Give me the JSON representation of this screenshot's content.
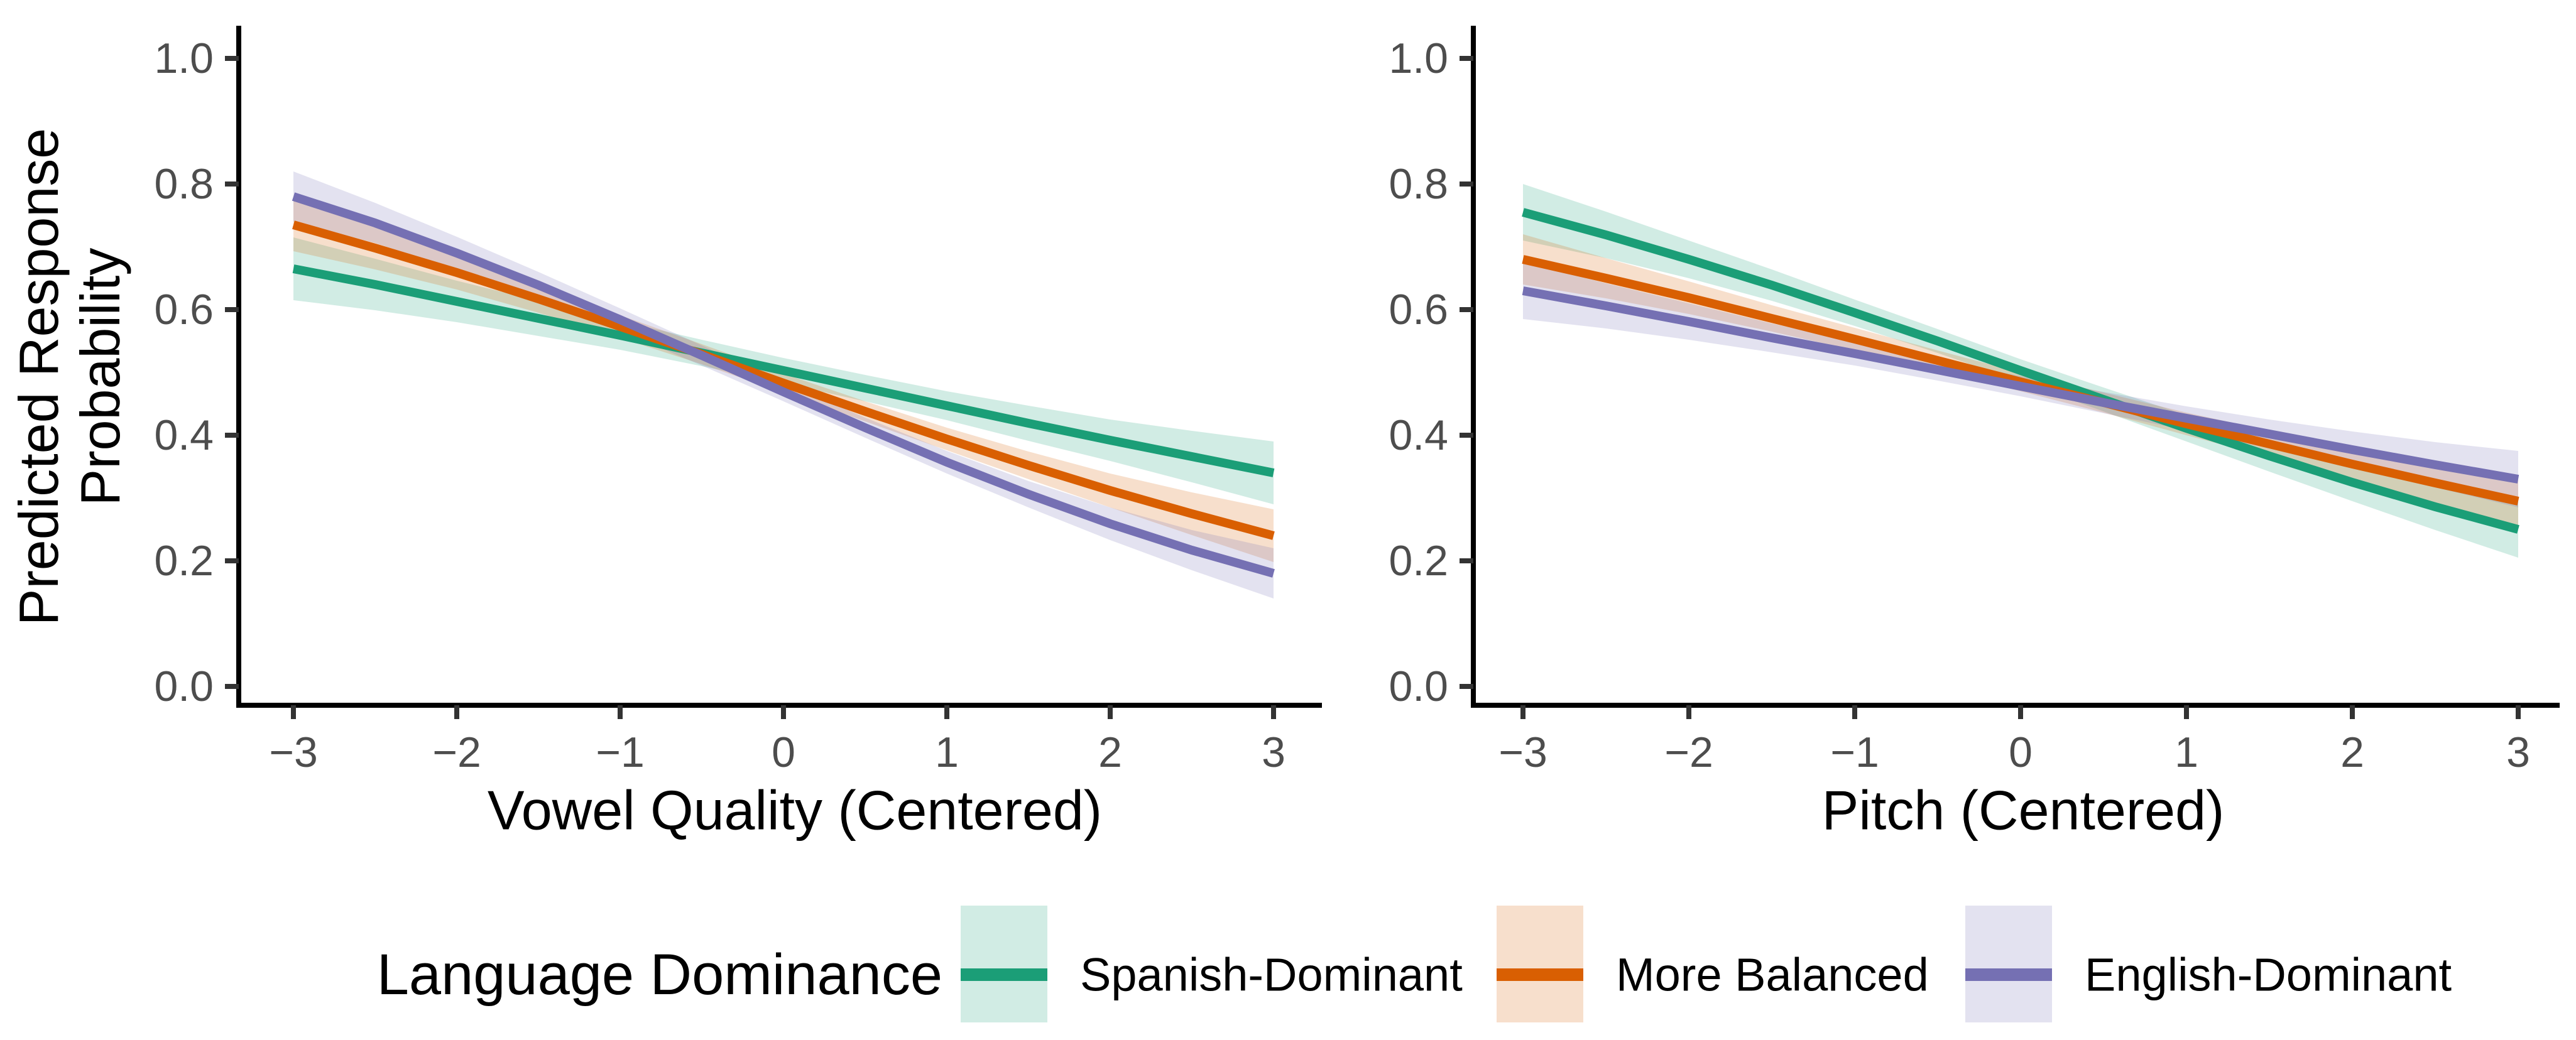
{
  "figure": {
    "background": "#FFFFFF"
  },
  "palette": {
    "green": "#1B9E77",
    "orange": "#D95F02",
    "purple": "#7570B3",
    "axis_text": "#4D4D4D",
    "axis_line": "#000000"
  },
  "chart_data": [
    {
      "type": "line",
      "panel": "left",
      "xlabel": "Vowel Quality (Centered)",
      "ylabel_lines": [
        "Predicted Response",
        "Probability"
      ],
      "xlim": [
        -3,
        3
      ],
      "ylim": [
        0.0,
        1.0
      ],
      "x_ticks": [
        -3,
        -2,
        -1,
        0,
        1,
        2,
        3
      ],
      "y_ticks": [
        0.0,
        0.2,
        0.4,
        0.6,
        0.8,
        1.0
      ],
      "grid": false,
      "ribbons": true,
      "x": [
        -3,
        -2.5,
        -2,
        -1.5,
        -1,
        -0.5,
        0,
        0.5,
        1,
        1.5,
        2,
        2.5,
        3
      ],
      "series": [
        {
          "name": "Spanish-Dominant",
          "color": "#1B9E77",
          "values": [
            0.665,
            0.64,
            0.613,
            0.586,
            0.559,
            0.531,
            0.503,
            0.475,
            0.447,
            0.419,
            0.392,
            0.366,
            0.34
          ],
          "lower": [
            0.615,
            0.599,
            0.58,
            0.558,
            0.536,
            0.51,
            0.483,
            0.454,
            0.424,
            0.391,
            0.359,
            0.325,
            0.29
          ],
          "upper": [
            0.715,
            0.681,
            0.646,
            0.614,
            0.582,
            0.552,
            0.523,
            0.496,
            0.47,
            0.447,
            0.425,
            0.407,
            0.39
          ]
        },
        {
          "name": "More Balanced",
          "color": "#D95F02",
          "values": [
            0.735,
            0.698,
            0.659,
            0.617,
            0.573,
            0.529,
            0.483,
            0.438,
            0.394,
            0.352,
            0.312,
            0.275,
            0.24
          ],
          "lower": [
            0.693,
            0.664,
            0.632,
            0.595,
            0.555,
            0.513,
            0.468,
            0.422,
            0.376,
            0.33,
            0.285,
            0.241,
            0.198
          ],
          "upper": [
            0.777,
            0.732,
            0.686,
            0.639,
            0.591,
            0.545,
            0.498,
            0.454,
            0.412,
            0.374,
            0.339,
            0.309,
            0.282
          ]
        },
        {
          "name": "English-Dominant",
          "color": "#7570B3",
          "values": [
            0.78,
            0.738,
            0.69,
            0.639,
            0.584,
            0.527,
            0.469,
            0.412,
            0.357,
            0.306,
            0.259,
            0.217,
            0.18
          ],
          "lower": [
            0.74,
            0.706,
            0.664,
            0.618,
            0.566,
            0.511,
            0.454,
            0.396,
            0.339,
            0.285,
            0.233,
            0.185,
            0.14
          ],
          "upper": [
            0.82,
            0.77,
            0.716,
            0.66,
            0.602,
            0.543,
            0.484,
            0.428,
            0.375,
            0.327,
            0.285,
            0.249,
            0.22
          ]
        }
      ]
    },
    {
      "type": "line",
      "panel": "right",
      "xlabel": "Pitch (Centered)",
      "ylabel_lines": [],
      "xlim": [
        -3,
        3
      ],
      "ylim": [
        0.0,
        1.0
      ],
      "x_ticks": [
        -3,
        -2,
        -1,
        0,
        1,
        2,
        3
      ],
      "y_ticks": [
        0.0,
        0.2,
        0.4,
        0.6,
        0.8,
        1.0
      ],
      "grid": false,
      "ribbons": true,
      "x": [
        -3,
        -2.5,
        -2,
        -1.5,
        -1,
        -0.5,
        0,
        0.5,
        1,
        1.5,
        2,
        2.5,
        3
      ],
      "series": [
        {
          "name": "Spanish-Dominant",
          "color": "#1B9E77",
          "values": [
            0.755,
            0.719,
            0.68,
            0.639,
            0.595,
            0.55,
            0.503,
            0.457,
            0.411,
            0.367,
            0.325,
            0.286,
            0.25
          ],
          "lower": [
            0.71,
            0.682,
            0.65,
            0.614,
            0.574,
            0.531,
            0.485,
            0.438,
            0.39,
            0.342,
            0.295,
            0.249,
            0.205
          ],
          "upper": [
            0.8,
            0.756,
            0.71,
            0.664,
            0.616,
            0.569,
            0.521,
            0.476,
            0.432,
            0.392,
            0.355,
            0.323,
            0.295
          ]
        },
        {
          "name": "More Balanced",
          "color": "#D95F02",
          "values": [
            0.68,
            0.65,
            0.619,
            0.586,
            0.553,
            0.519,
            0.485,
            0.452,
            0.418,
            0.386,
            0.354,
            0.324,
            0.295
          ],
          "lower": [
            0.64,
            0.618,
            0.593,
            0.565,
            0.535,
            0.503,
            0.47,
            0.436,
            0.4,
            0.365,
            0.328,
            0.292,
            0.255
          ],
          "upper": [
            0.72,
            0.682,
            0.645,
            0.607,
            0.571,
            0.535,
            0.5,
            0.468,
            0.436,
            0.407,
            0.38,
            0.356,
            0.335
          ]
        },
        {
          "name": "English-Dominant",
          "color": "#7570B3",
          "values": [
            0.63,
            0.606,
            0.581,
            0.555,
            0.53,
            0.504,
            0.478,
            0.452,
            0.427,
            0.402,
            0.377,
            0.353,
            0.33
          ],
          "lower": [
            0.585,
            0.57,
            0.552,
            0.532,
            0.511,
            0.487,
            0.462,
            0.435,
            0.408,
            0.379,
            0.348,
            0.317,
            0.285
          ],
          "upper": [
            0.675,
            0.642,
            0.61,
            0.578,
            0.549,
            0.521,
            0.494,
            0.469,
            0.446,
            0.425,
            0.406,
            0.389,
            0.375
          ]
        }
      ]
    }
  ],
  "legend": {
    "title": "Language Dominance",
    "position": "bottom",
    "entries": [
      {
        "label": "Spanish-Dominant",
        "color": "#1B9E77"
      },
      {
        "label": "More Balanced",
        "color": "#D95F02"
      },
      {
        "label": "English-Dominant",
        "color": "#7570B3"
      }
    ]
  }
}
